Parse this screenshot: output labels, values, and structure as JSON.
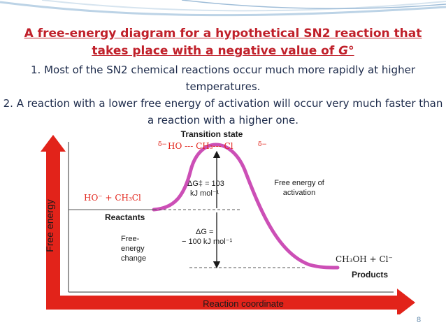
{
  "slide": {
    "title_line1": "A free-energy diagram for a hypothetical SN2 reaction that",
    "title_line2_prefix": "takes place with a negative value of ",
    "title_line2_symbol": "G°",
    "point1": "1. Most of the SN2 chemical reactions occur much more rapidly at higher temperatures.",
    "point2": "2. A reaction with a lower free energy of activation will occur very much faster than a reaction with a higher one.",
    "page_number": "8"
  },
  "diagram": {
    "ts_label": "Transition state",
    "ts_delta_left": "δ−",
    "ts_species": "HO --- CH₃--- Cl",
    "ts_delta_right": "δ−",
    "reactants_species": "HO⁻  +  CH₃Cl",
    "reactants_label": "Reactants",
    "products_species": "CH₃OH  +  Cl⁻",
    "products_label": "Products",
    "activation_value_line1": "ΔG‡ = 103",
    "activation_value_line2": "kJ mol⁻¹",
    "activation_label_line1": "Free energy of",
    "activation_label_line2": "activation",
    "dg_value_line1": "ΔG =",
    "dg_value_line2": "− 100 kJ mol⁻¹",
    "change_label_line1": "Free-",
    "change_label_line2": "energy",
    "change_label_line3": "change",
    "y_axis_label": "Free energy",
    "x_axis_label": "Reaction coordinate",
    "colors": {
      "curve": "#cc4fb6",
      "arrow": "#e2231a",
      "text": "#1a1a1a",
      "species_red": "#e2231a",
      "title": "#c0202a"
    }
  }
}
